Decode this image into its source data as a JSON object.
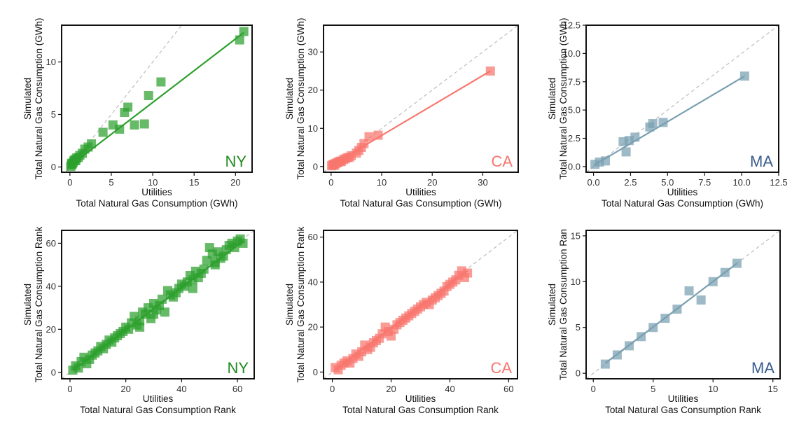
{
  "chart_data": [
    {
      "type": "scatter",
      "panel": "ny-volume",
      "state_label": "NY",
      "color": "#2ca02c",
      "label_color": "#228b22",
      "xlabel_line1": "Utilities",
      "xlabel_line2": "Total Natural Gas Consumption (GWh)",
      "ylabel_line1": "Simulated",
      "ylabel_line2": "Total Natural Gas Consumption (GWh)",
      "xlim": [
        -1,
        22
      ],
      "ylim": [
        -0.5,
        13.5
      ],
      "xticks": [
        0,
        5,
        10,
        15,
        20
      ],
      "yticks": [
        0,
        5,
        10
      ],
      "xtick_labels": [
        "0",
        "5",
        "10",
        "15",
        "20"
      ],
      "ytick_labels": [
        "0",
        "5",
        "10"
      ],
      "diagonal": true,
      "fit_line": {
        "x": [
          0,
          21
        ],
        "y": [
          0.1,
          12.8
        ]
      },
      "points": {
        "x": [
          0.1,
          0.2,
          0.2,
          0.3,
          0.4,
          0.5,
          0.6,
          0.7,
          0.8,
          1.0,
          1.2,
          1.5,
          1.8,
          2.2,
          2.6,
          4.0,
          5.2,
          6.0,
          6.6,
          7.0,
          7.8,
          9.0,
          9.5,
          11.0,
          20.5,
          21.0
        ],
        "y": [
          0.05,
          0.2,
          0.35,
          0.3,
          0.45,
          0.6,
          0.7,
          0.6,
          0.85,
          0.9,
          1.1,
          1.3,
          1.7,
          1.9,
          2.2,
          3.3,
          4.0,
          3.6,
          5.2,
          5.7,
          4.0,
          4.1,
          6.8,
          8.1,
          12.1,
          12.9
        ]
      }
    },
    {
      "type": "scatter",
      "panel": "ca-volume",
      "state_label": "CA",
      "color": "#f8766d",
      "label_color": "#f8766d",
      "xlabel_line1": "Utilities",
      "xlabel_line2": "Total Natural Gas Consumption (GWh)",
      "ylabel_line1": "Simulated",
      "ylabel_line2": "Total Natural Gas Consumption (GWh)",
      "xlim": [
        -1.5,
        37
      ],
      "ylim": [
        -1.5,
        37
      ],
      "xticks": [
        0,
        10,
        20,
        30
      ],
      "yticks": [
        0,
        10,
        20,
        30
      ],
      "xtick_labels": [
        "0",
        "10",
        "20",
        "30"
      ],
      "ytick_labels": [
        "0",
        "10",
        "20",
        "30"
      ],
      "diagonal": true,
      "fit_line": {
        "x": [
          0,
          31.5
        ],
        "y": [
          0.3,
          25
        ]
      },
      "points": {
        "x": [
          0.1,
          0.3,
          0.5,
          0.7,
          0.9,
          1.2,
          1.5,
          1.8,
          2.0,
          2.4,
          2.8,
          3.2,
          3.6,
          4.0,
          5.0,
          5.5,
          6.0,
          6.5,
          7.5,
          9.3,
          31.5
        ],
        "y": [
          0.2,
          0.4,
          0.6,
          0.3,
          0.8,
          1.0,
          1.2,
          1.4,
          1.3,
          1.8,
          2.0,
          2.3,
          2.4,
          2.8,
          3.5,
          4.2,
          5.0,
          6.0,
          7.8,
          8.2,
          25.0
        ]
      }
    },
    {
      "type": "scatter",
      "panel": "ma-volume",
      "state_label": "MA",
      "color": "#7a9fb1",
      "label_color": "#3a5c8f",
      "xlabel_line1": "Utilities",
      "xlabel_line2": "Total Natural Gas Consumption (GWh)",
      "ylabel_line1": "Simulated",
      "ylabel_line2": "Total Natural Gas Consumption (GWh)",
      "xlim": [
        -0.5,
        12.5
      ],
      "ylim": [
        -0.5,
        12.5
      ],
      "xticks": [
        0,
        2.5,
        5,
        7.5,
        10,
        12.5
      ],
      "yticks": [
        0,
        2.5,
        5,
        7.5,
        10,
        12.5
      ],
      "xtick_labels": [
        "0.0",
        "2.5",
        "5.0",
        "7.5",
        "10.0",
        "12.5"
      ],
      "ytick_labels": [
        "0.0",
        "2.5",
        "5.0",
        "7.5",
        "10.0",
        "12.5"
      ],
      "diagonal": true,
      "fit_line": {
        "x": [
          0,
          10.2
        ],
        "y": [
          0.1,
          8.0
        ]
      },
      "points": {
        "x": [
          0.1,
          0.4,
          0.8,
          2.0,
          2.2,
          2.4,
          2.8,
          3.8,
          4.0,
          4.7,
          10.2
        ],
        "y": [
          0.2,
          0.4,
          0.5,
          2.2,
          1.3,
          2.3,
          2.6,
          3.5,
          3.8,
          3.9,
          8.0
        ]
      }
    },
    {
      "type": "scatter",
      "panel": "ny-rank",
      "state_label": "NY",
      "color": "#2ca02c",
      "label_color": "#228b22",
      "xlabel_line1": "Utilities",
      "xlabel_line2": "Total Natural Gas Consumption Rank",
      "ylabel_line1": "Simulated",
      "ylabel_line2": "Total Natural Gas Consumption Rank",
      "xlim": [
        -3,
        66
      ],
      "ylim": [
        -3,
        66
      ],
      "xticks": [
        0,
        20,
        40,
        60
      ],
      "yticks": [
        0,
        20,
        40,
        60
      ],
      "xtick_labels": [
        "0",
        "20",
        "40",
        "60"
      ],
      "ytick_labels": [
        "0",
        "20",
        "40",
        "60"
      ],
      "diagonal": true,
      "fit_line": {
        "x": [
          1,
          62
        ],
        "y": [
          1,
          61
        ]
      },
      "points": {
        "x": [
          1,
          2,
          3,
          4,
          5,
          6,
          7,
          8,
          9,
          10,
          11,
          12,
          13,
          14,
          15,
          16,
          17,
          18,
          19,
          20,
          21,
          22,
          23,
          24,
          25,
          26,
          27,
          28,
          29,
          30,
          31,
          32,
          33,
          34,
          35,
          36,
          37,
          38,
          39,
          40,
          41,
          42,
          43,
          44,
          45,
          46,
          47,
          48,
          49,
          50,
          51,
          52,
          53,
          54,
          55,
          56,
          57,
          58,
          59,
          60,
          61,
          62,
          25,
          30,
          44,
          52
        ],
        "y": [
          1,
          3,
          2,
          5,
          7,
          4,
          6,
          8,
          9,
          10,
          12,
          11,
          13,
          15,
          14,
          16,
          17,
          18,
          19,
          21,
          20,
          23,
          26,
          22,
          24,
          28,
          27,
          30,
          25,
          32,
          29,
          31,
          34,
          28,
          38,
          36,
          35,
          37,
          39,
          41,
          40,
          42,
          45,
          43,
          47,
          44,
          46,
          48,
          52,
          58,
          55,
          51,
          56,
          53,
          54,
          57,
          59,
          60,
          58,
          61,
          62,
          60,
          21,
          27,
          39,
          50
        ]
      }
    },
    {
      "type": "scatter",
      "panel": "ca-rank",
      "state_label": "CA",
      "color": "#f8766d",
      "label_color": "#f8766d",
      "xlabel_line1": "Utilities",
      "xlabel_line2": "Total Natural Gas Consumption Rank",
      "ylabel_line1": "Simulated",
      "ylabel_line2": "Total Natural Gas Consumption Rank",
      "xlim": [
        -3,
        63
      ],
      "ylim": [
        -3,
        63
      ],
      "xticks": [
        0,
        20,
        40,
        60
      ],
      "yticks": [
        0,
        20,
        40,
        60
      ],
      "xtick_labels": [
        "0",
        "20",
        "40",
        "60"
      ],
      "ytick_labels": [
        "0",
        "20",
        "40",
        "60"
      ],
      "diagonal": true,
      "fit_line": {
        "x": [
          1,
          46
        ],
        "y": [
          1,
          45
        ]
      },
      "points": {
        "x": [
          1,
          2,
          3,
          4,
          5,
          6,
          7,
          8,
          9,
          10,
          11,
          12,
          13,
          14,
          15,
          16,
          17,
          18,
          19,
          20,
          21,
          22,
          23,
          24,
          25,
          26,
          27,
          28,
          29,
          30,
          31,
          32,
          33,
          34,
          35,
          36,
          37,
          38,
          39,
          40,
          41,
          42,
          43,
          44,
          45,
          46
        ],
        "y": [
          2,
          1,
          3,
          4,
          5,
          4,
          6,
          8,
          7,
          9,
          12,
          10,
          11,
          13,
          14,
          15,
          17,
          20,
          18,
          16,
          19,
          21,
          22,
          23,
          24,
          25,
          26,
          27,
          28,
          29,
          30,
          31,
          30,
          32,
          33,
          34,
          35,
          36,
          38,
          39,
          40,
          41,
          43,
          45,
          42,
          44
        ]
      }
    },
    {
      "type": "scatter",
      "panel": "ma-rank",
      "state_label": "MA",
      "color": "#7a9fb1",
      "label_color": "#3a5c8f",
      "xlabel_line1": "Utilities",
      "xlabel_line2": "Total Natural Gas Consumption Rank",
      "ylabel_line1": "Simulated",
      "ylabel_line2": "Total Natural Gas Consumption Ran",
      "xlim": [
        -0.6,
        15.6
      ],
      "ylim": [
        -0.6,
        15.6
      ],
      "xticks": [
        0,
        5,
        10,
        15
      ],
      "yticks": [
        0,
        5,
        10,
        15
      ],
      "xtick_labels": [
        "0",
        "5",
        "10",
        "15"
      ],
      "ytick_labels": [
        "0",
        "5",
        "10",
        "15"
      ],
      "diagonal": true,
      "fit_line": {
        "x": [
          1,
          12
        ],
        "y": [
          1.1,
          12
        ]
      },
      "points": {
        "x": [
          1,
          2,
          3,
          4,
          5,
          6,
          7,
          8,
          9,
          10,
          11,
          12
        ],
        "y": [
          1,
          2,
          3,
          4,
          5,
          6,
          7,
          9,
          8,
          10,
          11,
          12
        ]
      }
    }
  ]
}
